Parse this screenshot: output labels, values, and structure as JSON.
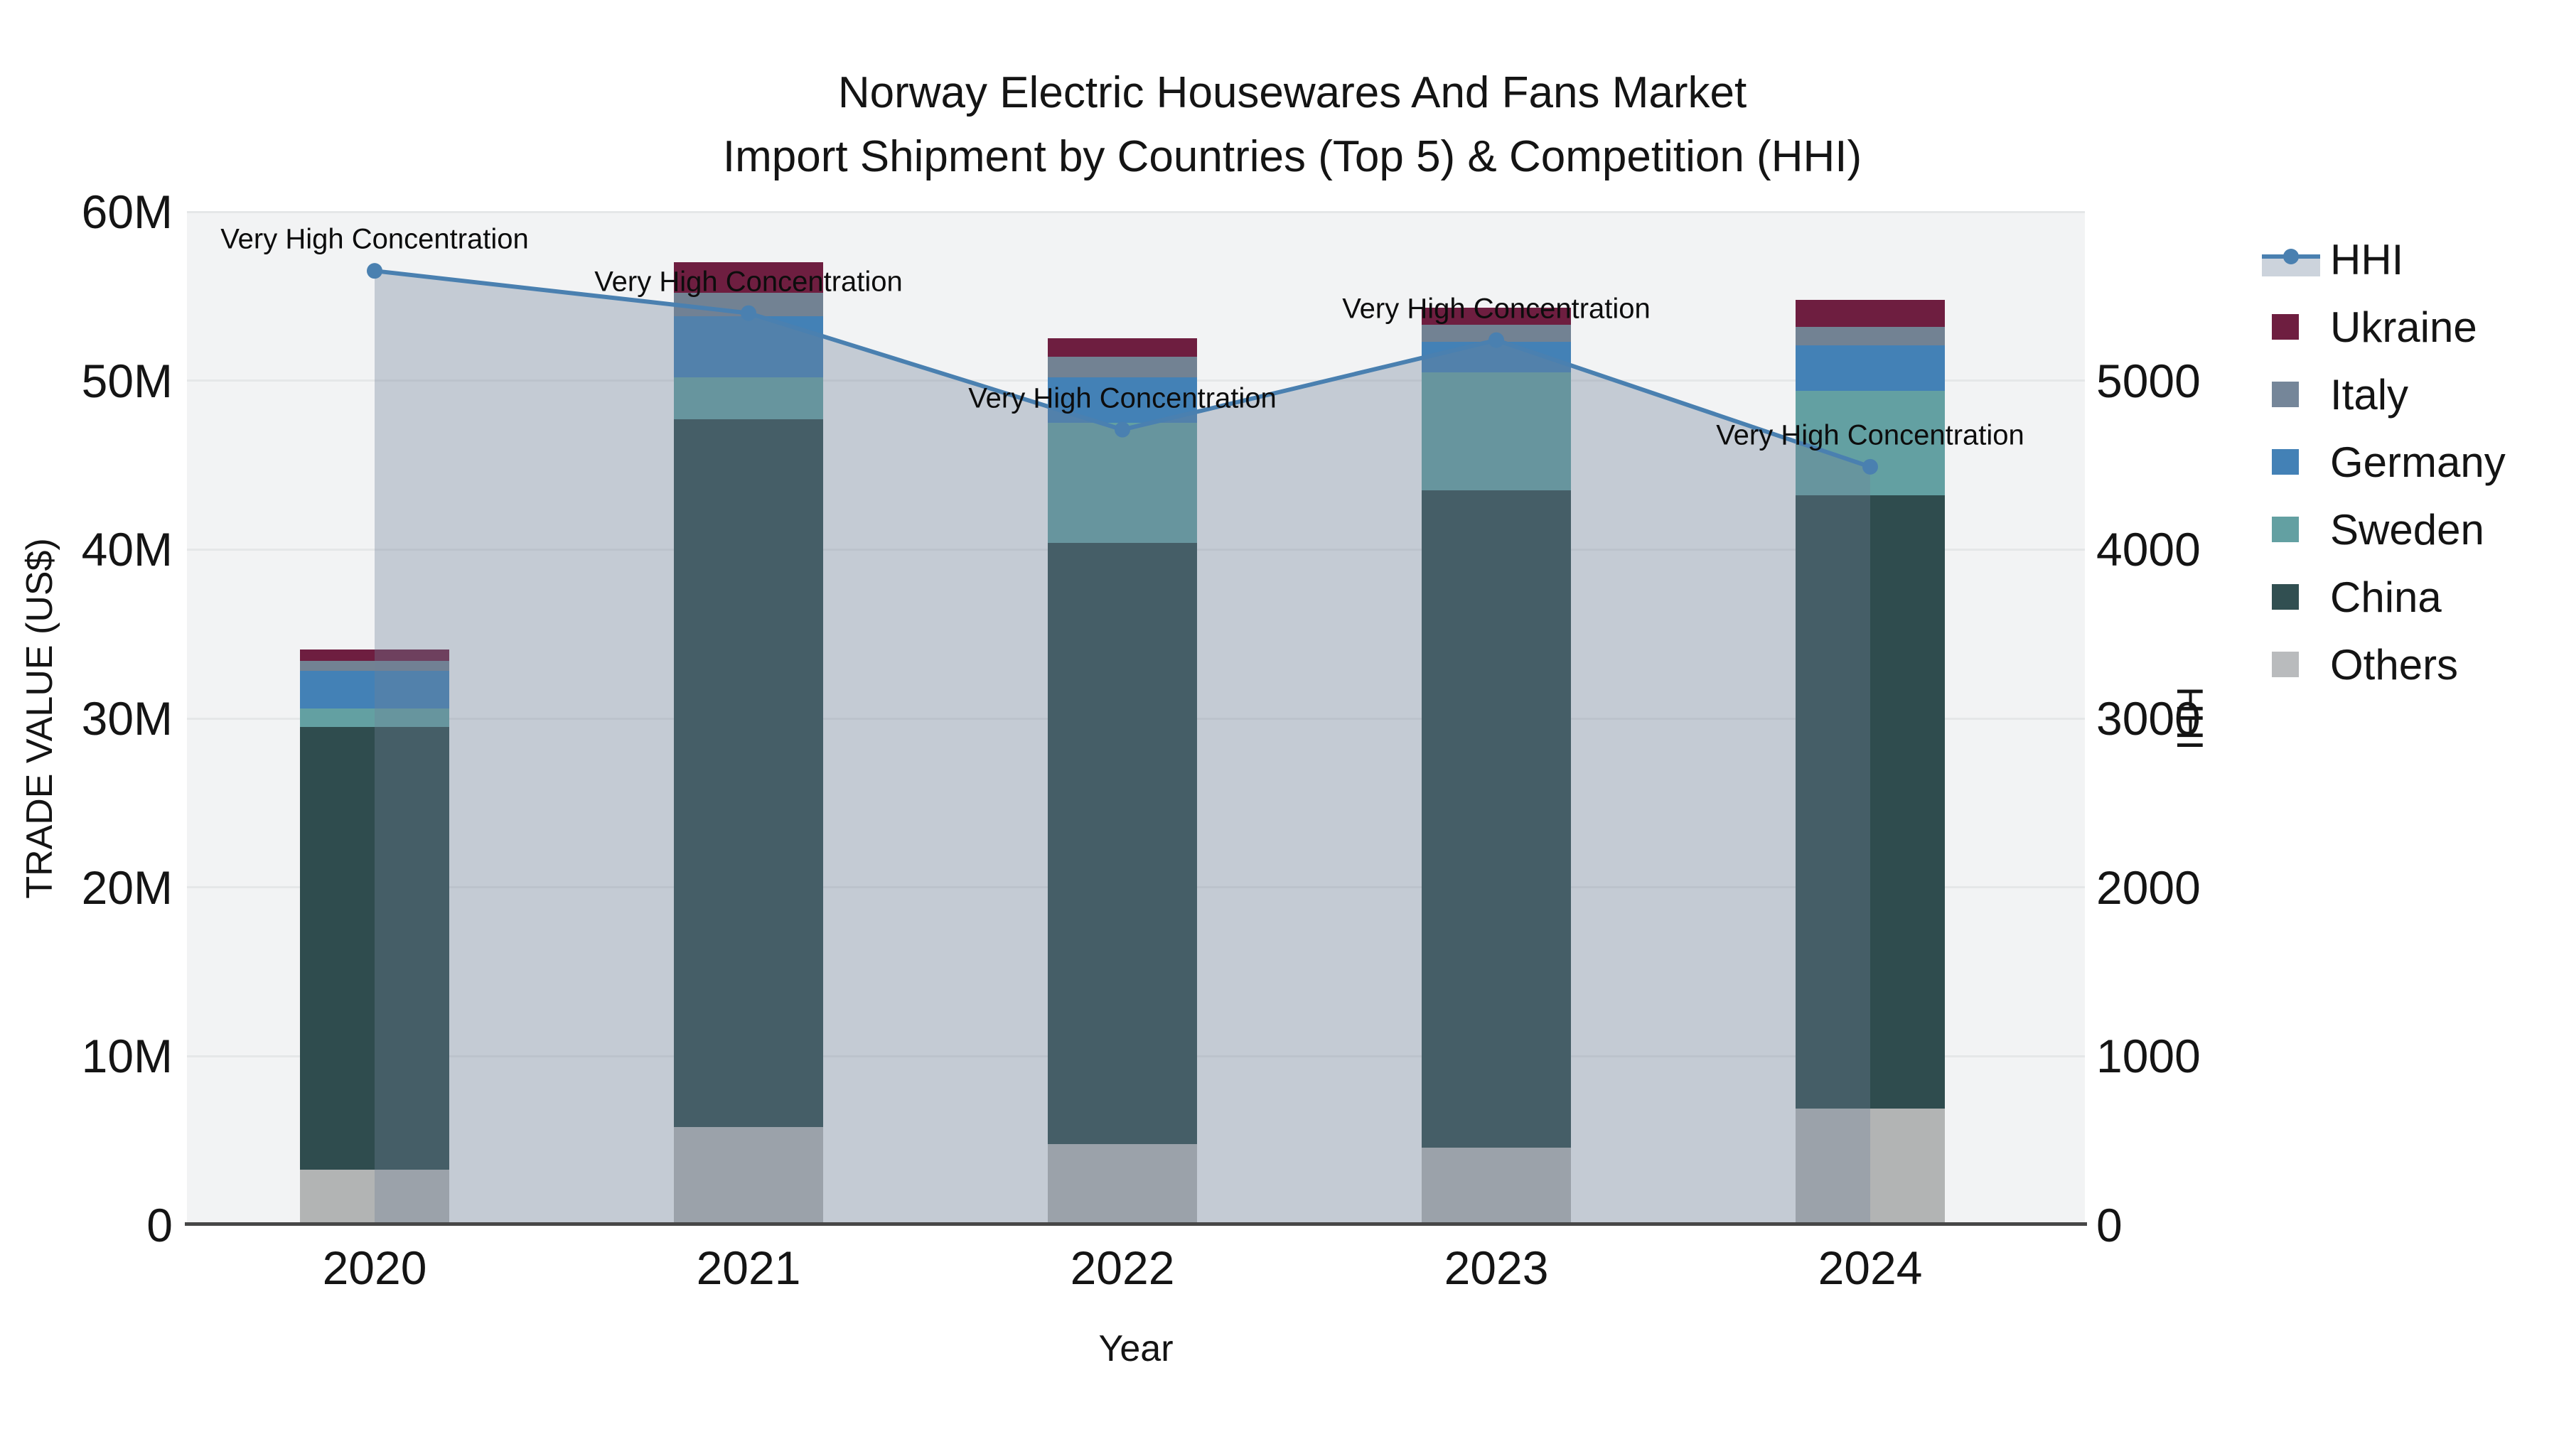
{
  "title": {
    "line1": "Norway Electric Housewares And Fans Market",
    "line2": "Import Shipment by Countries (Top 5) & Competition (HHI)"
  },
  "chart_data": {
    "type": "bar",
    "subtype": "stacked-bars-with-area-line-overlay",
    "x": [
      "2020",
      "2021",
      "2022",
      "2023",
      "2024"
    ],
    "x_axis": {
      "title": "Year"
    },
    "left_axis": {
      "title": "TRADE VALUE (US$)",
      "unit": "US$ millions",
      "max": 60,
      "ticks": [
        {
          "v": 0,
          "label": "0"
        },
        {
          "v": 10,
          "label": "10M"
        },
        {
          "v": 20,
          "label": "20M"
        },
        {
          "v": 30,
          "label": "30M"
        },
        {
          "v": 40,
          "label": "40M"
        },
        {
          "v": 50,
          "label": "50M"
        },
        {
          "v": 60,
          "label": "60M"
        }
      ]
    },
    "right_axis": {
      "title": "HHI",
      "max": 6000,
      "ticks": [
        {
          "v": 0,
          "label": "0"
        },
        {
          "v": 1000,
          "label": "1000"
        },
        {
          "v": 2000,
          "label": "2000"
        },
        {
          "v": 3000,
          "label": "3000"
        },
        {
          "v": 4000,
          "label": "4000"
        },
        {
          "v": 5000,
          "label": "5000"
        }
      ]
    },
    "series": [
      {
        "name": "Others",
        "color": "#b2b4b4",
        "values": [
          3.3,
          5.8,
          4.8,
          4.6,
          6.9
        ]
      },
      {
        "name": "China",
        "color": "#2f4c4e",
        "values": [
          26.2,
          41.9,
          35.6,
          38.9,
          36.3
        ]
      },
      {
        "name": "Sweden",
        "color": "#63a0a2",
        "values": [
          1.1,
          2.5,
          7.1,
          7.0,
          6.2
        ]
      },
      {
        "name": "Germany",
        "color": "#4381b6",
        "values": [
          2.2,
          3.6,
          2.7,
          1.8,
          2.7
        ]
      },
      {
        "name": "Italy",
        "color": "#728293",
        "values": [
          0.6,
          1.4,
          1.2,
          1.0,
          1.1
        ]
      },
      {
        "name": "Ukraine",
        "color": "#6e1e40",
        "values": [
          0.7,
          1.8,
          1.1,
          1.0,
          1.6
        ]
      }
    ],
    "hhi": {
      "name": "HHI",
      "values": [
        5650,
        5400,
        4710,
        5240,
        4490
      ],
      "line_color": "#4a80b0",
      "fill_color": "rgba(112,128,152,0.35)",
      "annotation": "Very High Concentration"
    },
    "legend": [
      {
        "label": "HHI",
        "type": "line",
        "color": "#4a80b0"
      },
      {
        "label": "Ukraine",
        "type": "swatch",
        "color": "#6e1e40"
      },
      {
        "label": "Italy",
        "type": "swatch",
        "color": "#758699"
      },
      {
        "label": "Germany",
        "type": "swatch",
        "color": "#4381b6"
      },
      {
        "label": "Sweden",
        "type": "swatch",
        "color": "#63a0a2"
      },
      {
        "label": "China",
        "type": "swatch",
        "color": "#314f51"
      },
      {
        "label": "Others",
        "type": "swatch",
        "color": "#b9bbbd"
      }
    ],
    "colors": {
      "plot_bg": "#f2f3f4",
      "gridline": "#e5e7e8",
      "axis_line": "#474747",
      "legend_band": "#ccd3dc"
    }
  }
}
